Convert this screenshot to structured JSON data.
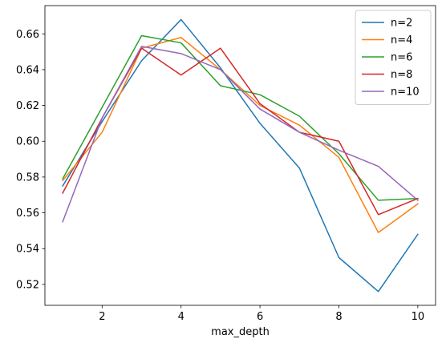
{
  "chart_data": {
    "type": "line",
    "title": "",
    "xlabel": "max_depth",
    "ylabel": "",
    "x": [
      1,
      2,
      3,
      4,
      5,
      6,
      7,
      8,
      9,
      10
    ],
    "xlim": [
      0.55,
      10.45
    ],
    "ylim": [
      0.5083,
      0.6758
    ],
    "xticks": [
      2,
      4,
      6,
      8,
      10
    ],
    "yticks": [
      0.52,
      0.54,
      0.56,
      0.58,
      0.6,
      0.62,
      0.64,
      0.66
    ],
    "ytick_labels": [
      "0.52",
      "0.54",
      "0.56",
      "0.58",
      "0.60",
      "0.62",
      "0.64",
      "0.66"
    ],
    "grid": false,
    "legend_position": "top-right",
    "series": [
      {
        "name": "n=2",
        "color": "#1f77b4",
        "values": [
          0.575,
          0.611,
          0.645,
          0.668,
          0.641,
          0.61,
          0.585,
          0.535,
          0.516,
          0.548
        ]
      },
      {
        "name": "n=4",
        "color": "#ff7f0e",
        "values": [
          0.578,
          0.605,
          0.652,
          0.658,
          0.64,
          0.62,
          0.609,
          0.591,
          0.549,
          0.565
        ]
      },
      {
        "name": "n=6",
        "color": "#2ca02c",
        "values": [
          0.579,
          0.619,
          0.659,
          0.655,
          0.631,
          0.626,
          0.614,
          0.593,
          0.567,
          0.568
        ]
      },
      {
        "name": "n=8",
        "color": "#d62728",
        "values": [
          0.571,
          0.613,
          0.652,
          0.637,
          0.652,
          0.621,
          0.605,
          0.6,
          0.559,
          0.568
        ]
      },
      {
        "name": "n=10",
        "color": "#9467bd",
        "values": [
          0.555,
          0.613,
          0.653,
          0.649,
          0.64,
          0.618,
          0.605,
          0.595,
          0.586,
          0.567
        ]
      }
    ]
  }
}
